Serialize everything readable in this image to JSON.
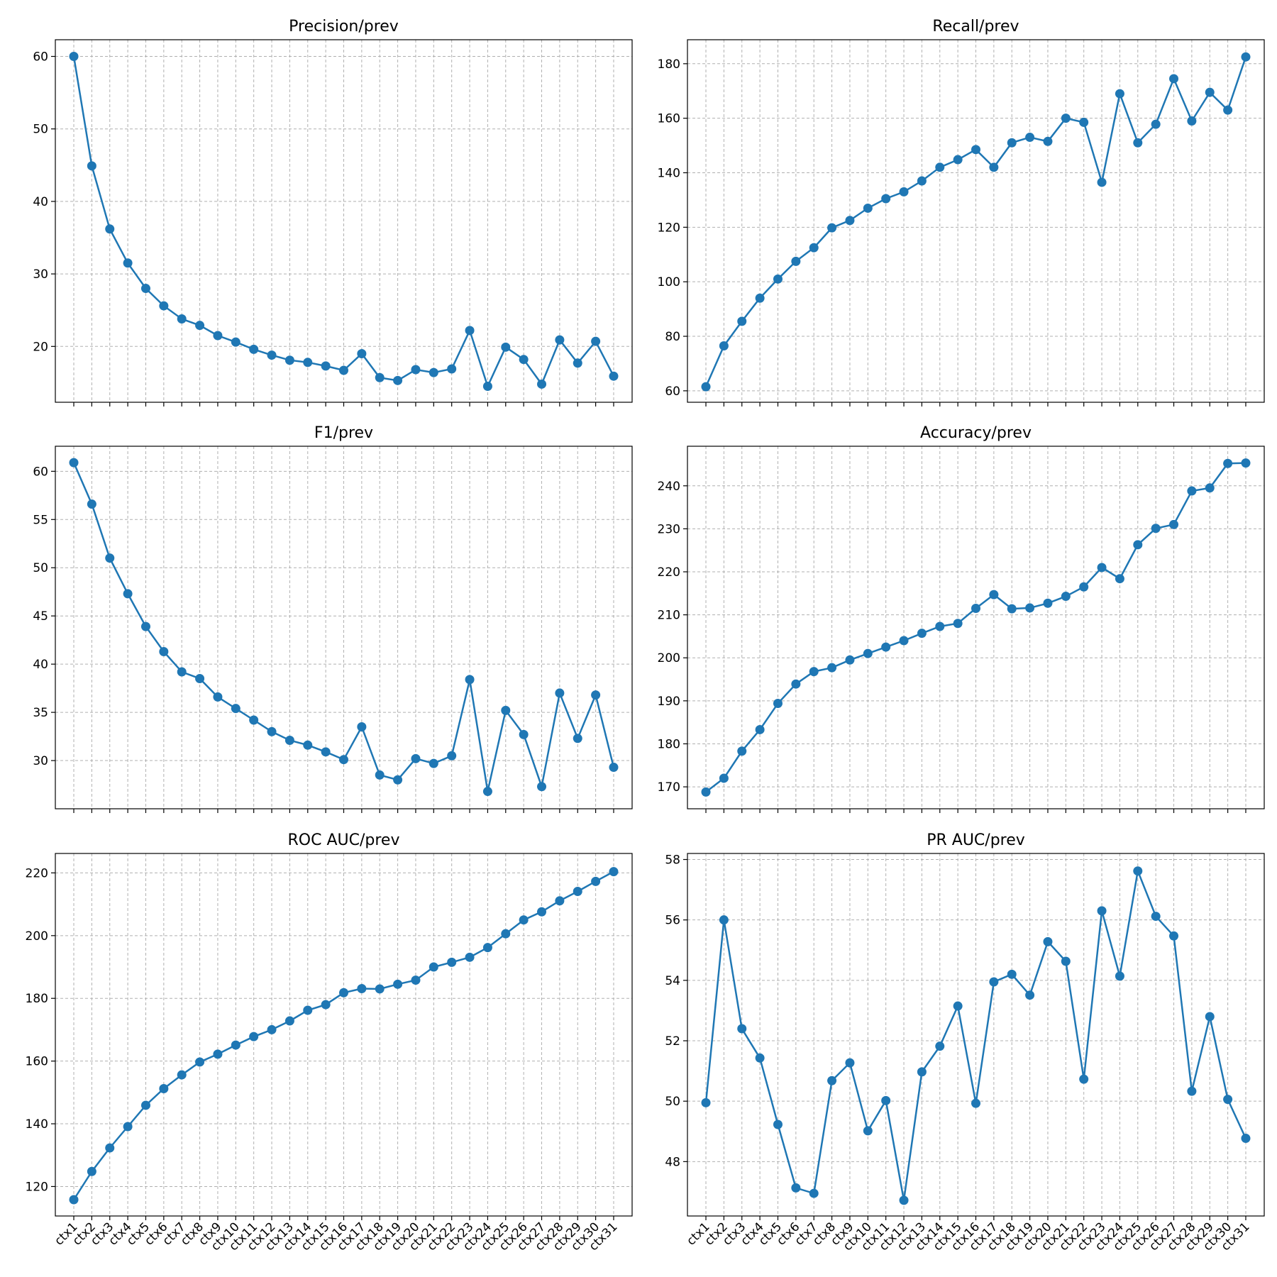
{
  "style": {
    "series_color": "#1f77b4",
    "grid": true
  },
  "categories": [
    "ctx1",
    "ctx2",
    "ctx3",
    "ctx4",
    "ctx5",
    "ctx6",
    "ctx7",
    "ctx8",
    "ctx9",
    "ctx10",
    "ctx11",
    "ctx12",
    "ctx13",
    "ctx14",
    "ctx15",
    "ctx16",
    "ctx17",
    "ctx18",
    "ctx19",
    "ctx20",
    "ctx21",
    "ctx22",
    "ctx23",
    "ctx24",
    "ctx25",
    "ctx26",
    "ctx27",
    "ctx28",
    "ctx29",
    "ctx30",
    "ctx31"
  ],
  "chart_data": [
    {
      "type": "line",
      "title": "Precision/prev",
      "ylim": [
        12.3,
        62.3
      ],
      "yticks": [
        20,
        30,
        40,
        50,
        60
      ],
      "values": [
        60.0,
        44.9,
        36.2,
        31.5,
        28.0,
        25.6,
        23.8,
        22.9,
        21.5,
        20.6,
        19.6,
        18.8,
        18.1,
        17.8,
        17.3,
        16.7,
        19.0,
        15.7,
        15.3,
        16.8,
        16.4,
        16.9,
        22.2,
        14.5,
        19.9,
        18.2,
        14.8,
        20.9,
        17.7,
        20.7,
        15.9
      ]
    },
    {
      "type": "line",
      "title": "Recall/prev",
      "ylim": [
        55.8,
        188.8
      ],
      "yticks": [
        60,
        80,
        100,
        120,
        140,
        160,
        180
      ],
      "values": [
        61.5,
        76.5,
        85.5,
        94.0,
        101.0,
        107.5,
        112.5,
        119.8,
        122.5,
        127.0,
        130.5,
        133.0,
        137.0,
        142.0,
        144.8,
        148.5,
        142.0,
        151.0,
        153.0,
        151.5,
        160.0,
        158.5,
        136.5,
        169.0,
        151.0,
        157.8,
        174.5,
        159.0,
        169.5,
        163.0,
        182.5
      ]
    },
    {
      "type": "line",
      "title": "F1/prev",
      "ylim": [
        25.0,
        62.6
      ],
      "yticks": [
        30,
        35,
        40,
        45,
        50,
        55,
        60
      ],
      "values": [
        60.9,
        56.6,
        51.0,
        47.3,
        43.9,
        41.3,
        39.2,
        38.5,
        36.6,
        35.4,
        34.2,
        33.0,
        32.1,
        31.6,
        30.9,
        30.1,
        33.5,
        28.5,
        28.0,
        30.2,
        29.7,
        30.5,
        38.4,
        26.8,
        35.2,
        32.7,
        27.3,
        37.0,
        32.3,
        36.8,
        29.3
      ]
    },
    {
      "type": "line",
      "title": "Accuracy/prev",
      "ylim": [
        164.9,
        249.2
      ],
      "yticks": [
        170,
        180,
        190,
        200,
        210,
        220,
        230,
        240
      ],
      "values": [
        168.8,
        172.0,
        178.3,
        183.3,
        189.4,
        193.9,
        196.8,
        197.7,
        199.5,
        201.0,
        202.5,
        204.0,
        205.7,
        207.3,
        208.0,
        211.5,
        214.7,
        211.4,
        211.6,
        212.7,
        214.3,
        216.5,
        221.0,
        218.4,
        226.3,
        230.1,
        231.0,
        238.8,
        239.5,
        245.2,
        245.3
      ]
    },
    {
      "type": "line",
      "title": "ROC AUC/prev",
      "ylim": [
        110.6,
        226.2
      ],
      "yticks": [
        120,
        140,
        160,
        180,
        200,
        220
      ],
      "values": [
        115.8,
        124.8,
        132.3,
        139.1,
        145.9,
        151.2,
        155.6,
        159.7,
        162.2,
        165.1,
        167.8,
        170.0,
        172.8,
        176.2,
        178.0,
        181.8,
        183.1,
        183.0,
        184.5,
        185.8,
        190.0,
        191.5,
        193.1,
        196.2,
        200.6,
        205.0,
        207.6,
        211.1,
        214.1,
        217.3,
        220.4
      ]
    },
    {
      "type": "line",
      "title": "PR AUC/prev",
      "ylim": [
        46.2,
        58.2
      ],
      "yticks": [
        48,
        50,
        52,
        54,
        56,
        58
      ],
      "values": [
        49.95,
        56.0,
        52.4,
        51.43,
        49.23,
        47.13,
        46.95,
        50.68,
        51.27,
        49.02,
        50.02,
        46.72,
        50.97,
        51.82,
        53.15,
        49.93,
        53.95,
        54.2,
        53.51,
        55.28,
        54.63,
        50.73,
        56.3,
        54.14,
        57.62,
        56.12,
        55.47,
        50.33,
        52.8,
        50.06,
        48.77
      ]
    }
  ]
}
